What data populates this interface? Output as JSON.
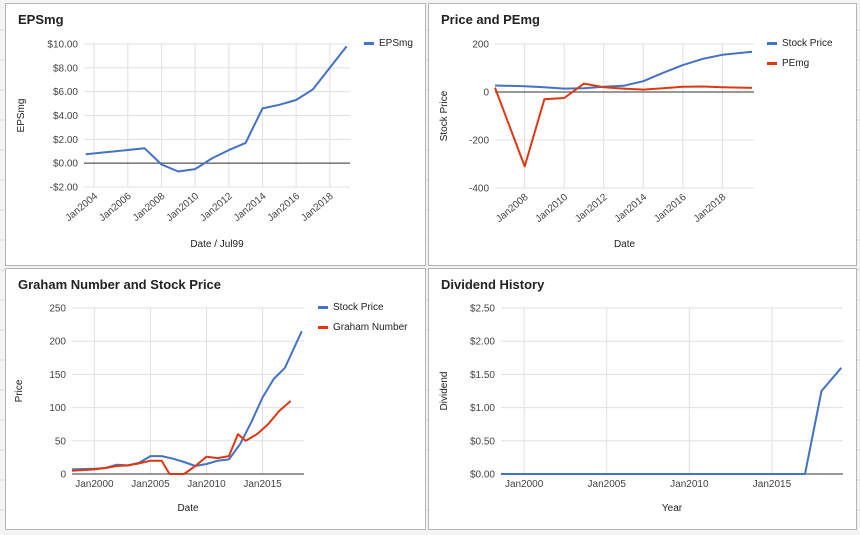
{
  "colors": {
    "blue": "#4472c4",
    "red": "#dc3912",
    "grid": "#e0e0e0",
    "zero": "#333333"
  },
  "chart_data": [
    {
      "type": "line",
      "title": "EPSmg",
      "xlabel": "Date / Jul99",
      "ylabel": "EPSmg",
      "x_ticks": [
        2004,
        2006,
        2008,
        2010,
        2012,
        2014,
        2016,
        2018
      ],
      "x_tick_labels": [
        "Jan2004",
        "Jan2006",
        "Jan2008",
        "Jan2010",
        "Jan2012",
        "Jan2014",
        "Jan2016",
        "Jan2018"
      ],
      "xlim": [
        2003.4,
        2019.2
      ],
      "ylim": [
        -2,
        10
      ],
      "y_ticks": [
        -2,
        0,
        2,
        4,
        6,
        8,
        10
      ],
      "y_tick_labels": [
        "-$2.00",
        "$0.00",
        "$2.00",
        "$4.00",
        "$6.00",
        "$8.00",
        "$10.00"
      ],
      "zero_line": true,
      "legend": "right",
      "series": [
        {
          "name": "EPSmg",
          "color": "#4472c4",
          "points": [
            [
              2003.5,
              0.75
            ],
            [
              2007,
              1.25
            ],
            [
              2008,
              -0.1
            ],
            [
              2009,
              -0.7
            ],
            [
              2010,
              -0.5
            ],
            [
              2011,
              0.4
            ],
            [
              2012,
              1.1
            ],
            [
              2013,
              1.7
            ],
            [
              2014,
              4.6
            ],
            [
              2015,
              4.9
            ],
            [
              2016,
              5.3
            ],
            [
              2017,
              6.2
            ],
            [
              2018,
              8.0
            ],
            [
              2019,
              9.8
            ]
          ]
        }
      ]
    },
    {
      "type": "line",
      "title": "Price and PEmg",
      "xlabel": "Date",
      "ylabel": "Stock Price",
      "x_ticks": [
        2008,
        2010,
        2012,
        2014,
        2016,
        2018
      ],
      "x_tick_labels": [
        "Jan2008",
        "Jan2010",
        "Jan2012",
        "Jan2014",
        "Jan2016",
        "Jan2018"
      ],
      "xlim": [
        2006.5,
        2019.6
      ],
      "ylim": [
        -400,
        200
      ],
      "y_ticks": [
        -400,
        -200,
        0,
        200
      ],
      "y_tick_labels": [
        "-400",
        "-200",
        "0",
        "200"
      ],
      "zero_line": true,
      "legend": "right",
      "series": [
        {
          "name": "Stock Price",
          "color": "#4472c4",
          "points": [
            [
              2006.5,
              27
            ],
            [
              2008,
              24
            ],
            [
              2009,
              20
            ],
            [
              2010,
              14
            ],
            [
              2011,
              16
            ],
            [
              2012,
              22
            ],
            [
              2013,
              26
            ],
            [
              2014,
              45
            ],
            [
              2015,
              80
            ],
            [
              2016,
              112
            ],
            [
              2017,
              138
            ],
            [
              2018,
              155
            ],
            [
              2019.5,
              168
            ]
          ]
        },
        {
          "name": "PEmg",
          "color": "#dc3912",
          "points": [
            [
              2006.5,
              18
            ],
            [
              2008,
              -310
            ],
            [
              2009,
              -30
            ],
            [
              2010,
              -25
            ],
            [
              2011,
              35
            ],
            [
              2012,
              20
            ],
            [
              2013,
              14
            ],
            [
              2014,
              10
            ],
            [
              2015,
              16
            ],
            [
              2016,
              22
            ],
            [
              2017,
              23
            ],
            [
              2018,
              20
            ],
            [
              2019.5,
              17
            ]
          ]
        }
      ]
    },
    {
      "type": "line",
      "title": "Graham Number and Stock Price",
      "xlabel": "Date",
      "ylabel": "Price",
      "x_ticks": [
        2000,
        2005,
        2010,
        2015
      ],
      "x_tick_labels": [
        "Jan2000",
        "Jan2005",
        "Jan2010",
        "Jan2015"
      ],
      "xlim": [
        1998,
        2018.7
      ],
      "ylim": [
        0,
        250
      ],
      "y_ticks": [
        0,
        50,
        100,
        150,
        200,
        250
      ],
      "y_tick_labels": [
        "0",
        "50",
        "100",
        "150",
        "200",
        "250"
      ],
      "legend": "right",
      "series": [
        {
          "name": "Stock Price",
          "color": "#4472c4",
          "points": [
            [
              1998,
              7
            ],
            [
              2000,
              8
            ],
            [
              2001,
              9
            ],
            [
              2002,
              14
            ],
            [
              2003,
              13
            ],
            [
              2004,
              17
            ],
            [
              2005,
              27
            ],
            [
              2006,
              27
            ],
            [
              2007,
              23
            ],
            [
              2008,
              18
            ],
            [
              2009,
              12
            ],
            [
              2010,
              15
            ],
            [
              2011,
              20
            ],
            [
              2012,
              22
            ],
            [
              2013,
              45
            ],
            [
              2014,
              78
            ],
            [
              2015,
              115
            ],
            [
              2016,
              143
            ],
            [
              2017,
              160
            ],
            [
              2018.5,
              215
            ]
          ]
        },
        {
          "name": "Graham Number",
          "color": "#dc3912",
          "points": [
            [
              1998,
              5
            ],
            [
              2000,
              7
            ],
            [
              2001,
              9
            ],
            [
              2002,
              12
            ],
            [
              2003,
              13
            ],
            [
              2004,
              16
            ],
            [
              2005,
              20
            ],
            [
              2006,
              20
            ],
            [
              2006.7,
              0
            ],
            [
              2008,
              0
            ],
            [
              2009,
              12
            ],
            [
              2010,
              26
            ],
            [
              2011,
              24
            ],
            [
              2012,
              27
            ],
            [
              2012.8,
              60
            ],
            [
              2013.5,
              50
            ],
            [
              2014.5,
              60
            ],
            [
              2015.5,
              75
            ],
            [
              2016.5,
              95
            ],
            [
              2017.5,
              110
            ]
          ]
        }
      ]
    },
    {
      "type": "line",
      "title": "Dividend History",
      "xlabel": "Year",
      "ylabel": "Dividend",
      "x_ticks": [
        2000,
        2005,
        2010,
        2015
      ],
      "x_tick_labels": [
        "Jan2000",
        "Jan2005",
        "Jan2010",
        "Jan2015"
      ],
      "xlim": [
        1998.6,
        2019.3
      ],
      "ylim": [
        0,
        2.5
      ],
      "y_ticks": [
        0,
        0.5,
        1,
        1.5,
        2,
        2.5
      ],
      "y_tick_labels": [
        "$0.00",
        "$0.50",
        "$1.00",
        "$1.50",
        "$2.00",
        "$2.50"
      ],
      "legend": "none",
      "series": [
        {
          "name": "",
          "color": "#4472c4",
          "points": [
            [
              1998.6,
              0
            ],
            [
              2017,
              0
            ],
            [
              2018,
              1.25
            ],
            [
              2019.2,
              1.6
            ]
          ]
        }
      ]
    }
  ]
}
